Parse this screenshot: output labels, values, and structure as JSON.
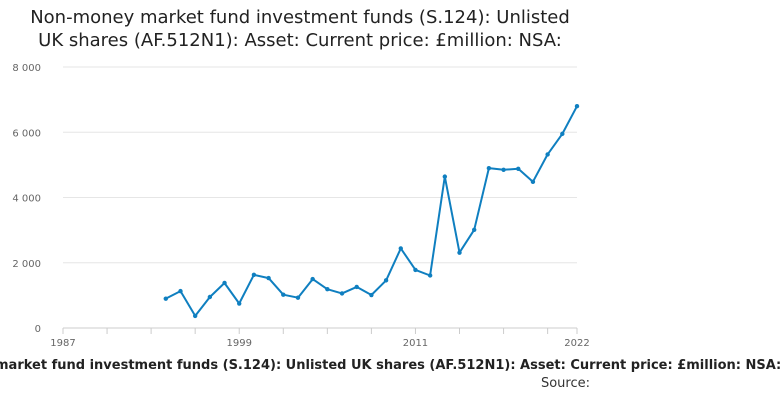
{
  "chart_title_line1": "Non-money market fund investment funds (S.124): Unlisted",
  "chart_title_line2": "UK shares (AF.512N1): Asset: Current price: £million: NSA:",
  "footer_caption": "market fund investment funds (S.124): Unlisted UK shares (AF.512N1): Asset: Current price: £million: NSA:",
  "footer_source": "Source:",
  "colors": {
    "line": "#0f7fc0",
    "grid": "#e6e6e6",
    "axis": "#cccccc"
  },
  "chart_data": {
    "type": "line",
    "title": "Non-money market fund investment funds (S.124): Unlisted UK shares (AF.512N1): Asset: Current price: £million: NSA:",
    "xlabel": "",
    "ylabel": "",
    "xlim": [
      1987,
      2022
    ],
    "ylim": [
      0,
      8000
    ],
    "x_ticks": [
      1987,
      1999,
      2011,
      2022
    ],
    "y_ticks": [
      0,
      2000,
      4000,
      6000,
      8000
    ],
    "y_tick_labels": [
      "0",
      "2 000",
      "4 000",
      "6 000",
      "8 000"
    ],
    "grid": true,
    "legend": "none",
    "series": [
      {
        "x": [
          1994,
          1995,
          1996,
          1997,
          1998,
          1999,
          2000,
          2001,
          2002,
          2003,
          2004,
          2005,
          2006,
          2007,
          2008,
          2009,
          2010,
          2011,
          2012,
          2013,
          2014,
          2015,
          2016,
          2017,
          2018,
          2019,
          2020,
          2021,
          2022
        ],
        "values": [
          900,
          1130,
          370,
          950,
          1380,
          750,
          1630,
          1530,
          1020,
          930,
          1500,
          1190,
          1060,
          1260,
          1010,
          1460,
          2440,
          1780,
          1610,
          4640,
          2310,
          3010,
          4900,
          4850,
          4880,
          4480,
          5320,
          5950,
          6800
        ]
      }
    ]
  }
}
